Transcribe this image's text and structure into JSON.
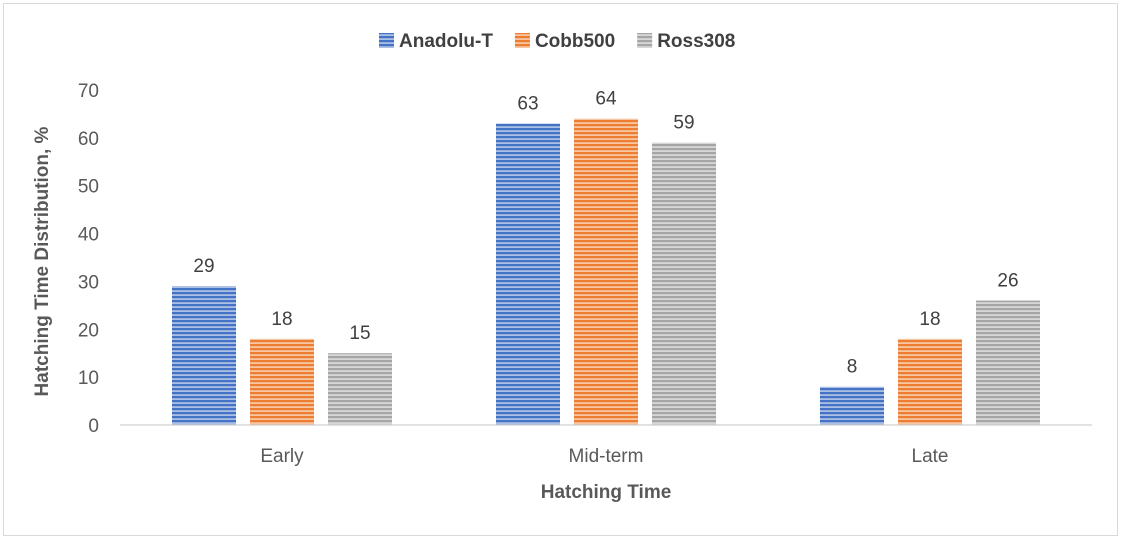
{
  "chart_data": {
    "type": "bar",
    "title": "",
    "xlabel": "Hatching Time",
    "ylabel": "Hatching Time Distribution, %",
    "categories": [
      "Early",
      "Mid-term",
      "Late"
    ],
    "series": [
      {
        "name": "Anadolu-T",
        "color": "#4472c4",
        "values": [
          29,
          63,
          8
        ]
      },
      {
        "name": "Cobb500",
        "color": "#ed7d31",
        "values": [
          18,
          64,
          18
        ]
      },
      {
        "name": "Ross308",
        "color": "#a5a5a5",
        "values": [
          15,
          59,
          26
        ]
      }
    ],
    "ylim": [
      0,
      70
    ],
    "yticks": [
      0,
      10,
      20,
      30,
      40,
      50,
      60,
      70
    ],
    "grid": false,
    "legend": "top-center",
    "pattern": "horizontal-stripes"
  }
}
